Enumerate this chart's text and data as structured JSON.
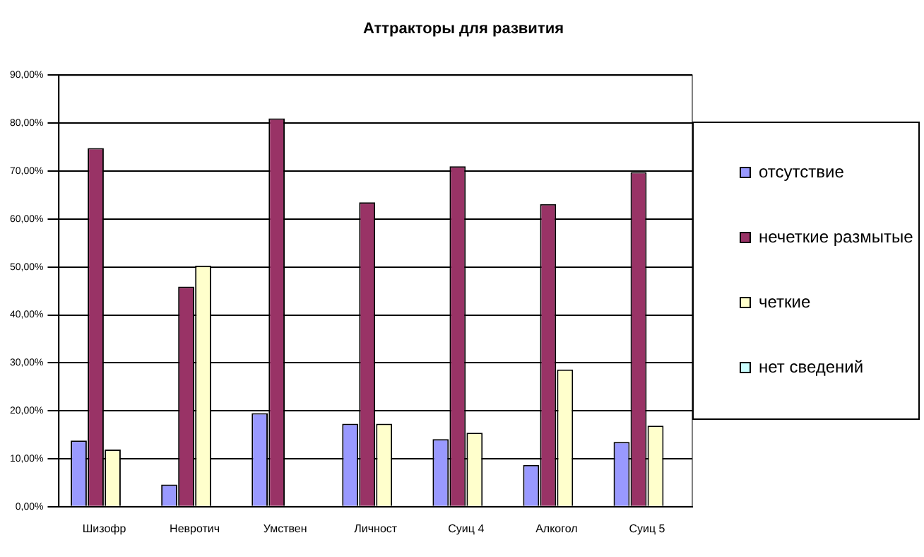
{
  "chart_data": {
    "type": "bar",
    "title": "Аттракторы для развития",
    "categories": [
      "Шизофр",
      "Невротич",
      "Умствен",
      "Личност",
      "Суиц 4",
      "Алкогол",
      "Суиц 5"
    ],
    "series": [
      {
        "name": "отсутствие",
        "color": "#9999ff",
        "values": [
          13.8,
          4.6,
          19.5,
          17.3,
          14.1,
          8.7,
          13.5
        ]
      },
      {
        "name": "нечеткие размытые",
        "color": "#993366",
        "values": [
          74.8,
          45.9,
          81.0,
          63.5,
          71.0,
          63.1,
          69.8
        ]
      },
      {
        "name": "четкие",
        "color": "#ffffcc",
        "values": [
          11.9,
          50.3,
          0,
          17.3,
          15.4,
          28.6,
          16.9
        ]
      },
      {
        "name": "нет сведений",
        "color": "#ccffff",
        "values": [
          0,
          0,
          0,
          0,
          0,
          0,
          0
        ]
      }
    ],
    "ylim": [
      0,
      90
    ],
    "yticks": [
      {
        "value": 0,
        "label": "0,00%"
      },
      {
        "value": 10,
        "label": "10,00%"
      },
      {
        "value": 20,
        "label": "20,00%"
      },
      {
        "value": 30,
        "label": "30,00%"
      },
      {
        "value": 40,
        "label": "40,00%"
      },
      {
        "value": 50,
        "label": "50,00%"
      },
      {
        "value": 60,
        "label": "60,00%"
      },
      {
        "value": 70,
        "label": "70,00%"
      },
      {
        "value": 80,
        "label": "80,00%"
      },
      {
        "value": 90,
        "label": "90,00%"
      }
    ],
    "grid": "y",
    "legend": "right"
  }
}
